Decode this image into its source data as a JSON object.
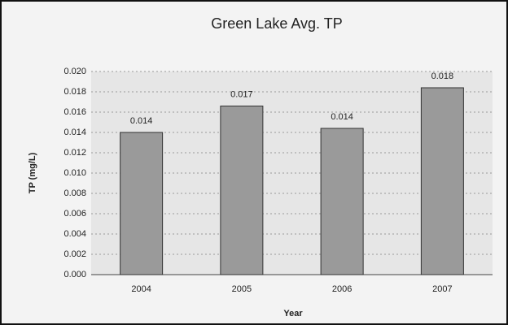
{
  "chart_data": {
    "type": "bar",
    "title": "Green Lake Avg. TP",
    "categories": [
      "2004",
      "2005",
      "2006",
      "2007"
    ],
    "values": [
      0.014,
      0.0166,
      0.0144,
      0.0184
    ],
    "value_labels": [
      "0.014",
      "0.017",
      "0.014",
      "0.018"
    ],
    "color": "#9a9a9a",
    "xlabel": "Year",
    "ylabel": "TP (mg/L)",
    "ylim": [
      0,
      0.02
    ],
    "yticks": [
      {
        "value": 0,
        "label": "0.000"
      },
      {
        "value": 0.002,
        "label": "0.002"
      },
      {
        "value": 0.004,
        "label": "0.004"
      },
      {
        "value": 0.006,
        "label": "0.006"
      },
      {
        "value": 0.008,
        "label": "0.008"
      },
      {
        "value": 0.01,
        "label": "0.010"
      },
      {
        "value": 0.012,
        "label": "0.012"
      },
      {
        "value": 0.014,
        "label": "0.014"
      },
      {
        "value": 0.016,
        "label": "0.016"
      },
      {
        "value": 0.018,
        "label": "0.018"
      },
      {
        "value": 0.02,
        "label": "0.020"
      }
    ],
    "grid": true
  }
}
